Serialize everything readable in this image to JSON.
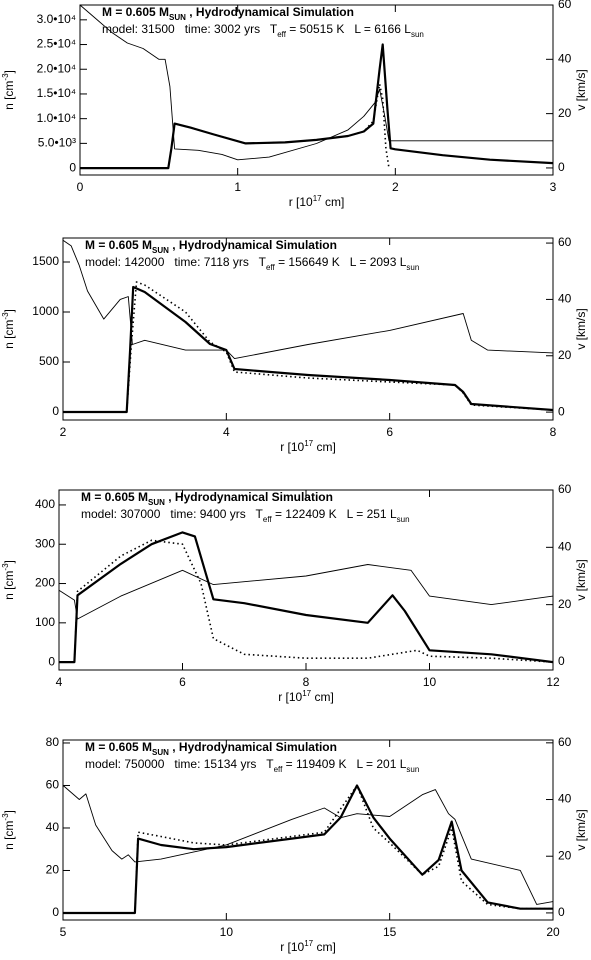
{
  "chart_data": [
    {
      "type": "line",
      "title": [
        {
          "text": "M = 0.605 M"
        },
        {
          "text": "SUN",
          "sub": true
        },
        {
          "text": " , Hydrodynamical Simulation"
        }
      ],
      "info": [
        {
          "text": "model: 31500   time: 3002 yrs   T"
        },
        {
          "text": "eff",
          "sub": true
        },
        {
          "text": " = 50515 K   L = 6166 L"
        },
        {
          "text": "sun",
          "sub": true
        }
      ],
      "xlabel": [
        {
          "text": "r [10"
        },
        {
          "text": "17",
          "sup": true
        },
        {
          "text": " cm]"
        }
      ],
      "ylabel": [
        {
          "text": "n [cm"
        },
        {
          "text": "-3",
          "sup": true
        },
        {
          "text": "]"
        }
      ],
      "y2label": [
        {
          "text": "v [km/s]"
        }
      ],
      "xlim": [
        0,
        3
      ],
      "xticks": [
        0,
        1,
        2,
        3
      ],
      "ylim": [
        -1400,
        33000
      ],
      "yticks": [
        0,
        {
          "value": 5000,
          "label": "5.0•10³"
        },
        {
          "value": 10000,
          "label": "1.0•10⁴"
        },
        {
          "value": 15000,
          "label": "1.5•10⁴"
        },
        {
          "value": 20000,
          "label": "2.0•10⁴"
        },
        {
          "value": 25000,
          "label": "2.5•10⁴"
        },
        {
          "value": 30000,
          "label": "3.0•10⁴"
        }
      ],
      "y2lim": [
        -2.6,
        60
      ],
      "y2ticks": [
        0,
        20,
        40,
        60
      ],
      "series": [
        {
          "color": "#000000",
          "width": 2.2,
          "dash": false,
          "x": [
            0,
            0.3,
            0.56,
            0.58,
            0.6,
            0.7,
            0.85,
            1.05,
            1.3,
            1.5,
            1.7,
            1.8,
            1.86,
            1.9,
            1.92,
            1.95,
            1.97,
            2.0,
            2.3,
            2.6,
            3.0
          ],
          "values": [
            0,
            0,
            0,
            4000,
            9000,
            8200,
            6800,
            5000,
            5200,
            5700,
            6500,
            7400,
            9000,
            20000,
            25000,
            12000,
            4000,
            3800,
            2600,
            1700,
            1000
          ]
        },
        {
          "color": "#000000",
          "width": 1.6,
          "dash": true,
          "x": [
            0,
            0.3,
            0.56,
            0.58,
            0.6,
            0.7,
            0.85,
            1.05,
            1.3,
            1.5,
            1.7,
            1.8,
            1.86,
            1.9,
            1.92,
            1.94,
            1.96
          ],
          "values": [
            0,
            0,
            0,
            4000,
            9000,
            8200,
            6800,
            5000,
            5200,
            5700,
            6500,
            7400,
            9500,
            17000,
            14000,
            4000,
            0
          ]
        },
        {
          "color": "#000000",
          "width": 0.9,
          "dash": false,
          "axis": "y2",
          "x": [
            0,
            0.1,
            0.2,
            0.3,
            0.4,
            0.5,
            0.54,
            0.57,
            0.6,
            0.75,
            0.9,
            1.0,
            1.2,
            1.5,
            1.7,
            1.8,
            1.87,
            1.9,
            1.93,
            1.96,
            2.0,
            2.5,
            3.0
          ],
          "values": [
            60,
            55,
            50,
            46,
            44,
            40,
            40,
            30,
            7,
            6.5,
            5,
            3,
            4,
            9,
            14,
            19,
            24,
            29,
            20,
            10,
            10,
            10,
            10
          ]
        }
      ]
    },
    {
      "type": "line",
      "title": [
        {
          "text": "M = 0.605 M"
        },
        {
          "text": "SUN",
          "sub": true
        },
        {
          "text": " , Hydrodynamical Simulation"
        }
      ],
      "info": [
        {
          "text": "model: 142000   time: 7118 yrs   T"
        },
        {
          "text": "eff",
          "sub": true
        },
        {
          "text": " = 156649 K   L = 2093 L"
        },
        {
          "text": "sun",
          "sub": true
        }
      ],
      "xlabel": [
        {
          "text": "r [10"
        },
        {
          "text": "17",
          "sup": true
        },
        {
          "text": " cm]"
        }
      ],
      "ylabel": [
        {
          "text": "n [cm"
        },
        {
          "text": "-3",
          "sup": true
        },
        {
          "text": "]"
        }
      ],
      "y2label": [
        {
          "text": "v [km/s]"
        }
      ],
      "xlim": [
        2,
        8
      ],
      "xticks": [
        2,
        4,
        6,
        8
      ],
      "ylim": [
        -80,
        1740
      ],
      "yticks": [
        0,
        500,
        1000,
        1500
      ],
      "y2lim": [
        -2.8,
        61.8
      ],
      "y2ticks": [
        0,
        20,
        40,
        60
      ],
      "series": [
        {
          "color": "#000000",
          "width": 2.2,
          "dash": false,
          "x": [
            2,
            2.78,
            2.82,
            2.86,
            3.0,
            3.5,
            3.8,
            4.0,
            4.1,
            5.0,
            6.0,
            6.8,
            6.9,
            7.0,
            8.0
          ],
          "values": [
            0,
            0,
            600,
            1250,
            1200,
            900,
            680,
            620,
            430,
            370,
            320,
            270,
            200,
            80,
            20
          ]
        },
        {
          "color": "#000000",
          "width": 1.6,
          "dash": true,
          "x": [
            2,
            2.78,
            2.84,
            2.9,
            3.0,
            3.5,
            3.8,
            4.0,
            4.1,
            5.0,
            6.0,
            6.8,
            6.9,
            7.0,
            8.0
          ],
          "values": [
            0,
            0,
            700,
            1300,
            1270,
            1000,
            700,
            600,
            400,
            340,
            300,
            270,
            190,
            70,
            20
          ]
        },
        {
          "color": "#000000",
          "width": 0.9,
          "dash": false,
          "axis": "y2",
          "x": [
            2,
            2.1,
            2.2,
            2.3,
            2.5,
            2.7,
            2.8,
            2.85,
            3.0,
            3.5,
            4.0,
            4.1,
            5.0,
            6.0,
            6.9,
            7.0,
            7.2,
            8.0
          ],
          "values": [
            61,
            59,
            52,
            43,
            33,
            40,
            41,
            24,
            25.5,
            22,
            22,
            19,
            24,
            29,
            35,
            25.5,
            22,
            21
          ]
        }
      ]
    },
    {
      "type": "line",
      "title": [
        {
          "text": "M = 0.605 M"
        },
        {
          "text": "SUN",
          "sub": true
        },
        {
          "text": " , Hydrodynamical Simulation"
        }
      ],
      "info": [
        {
          "text": "model: 307000   time: 9400 yrs   T"
        },
        {
          "text": "eff",
          "sub": true
        },
        {
          "text": " = 122409 K   L = 251 L"
        },
        {
          "text": "sun",
          "sub": true
        }
      ],
      "xlabel": [
        {
          "text": "r [10"
        },
        {
          "text": "17",
          "sup": true
        },
        {
          "text": " cm]"
        }
      ],
      "ylabel": [
        {
          "text": "n [cm"
        },
        {
          "text": "-3",
          "sup": true
        },
        {
          "text": "]"
        }
      ],
      "y2label": [
        {
          "text": "v [km/s]"
        }
      ],
      "xlim": [
        4,
        12
      ],
      "xticks": [
        4,
        6,
        8,
        10,
        12
      ],
      "ylim": [
        -20,
        438
      ],
      "yticks": [
        0,
        100,
        200,
        300,
        400
      ],
      "y2lim": [
        -2.8,
        60
      ],
      "y2ticks": [
        0,
        20,
        40,
        60
      ],
      "series": [
        {
          "color": "#000000",
          "width": 2.2,
          "dash": false,
          "x": [
            4,
            4.25,
            4.3,
            5.0,
            5.5,
            6.0,
            6.2,
            6.5,
            7.0,
            8.0,
            9.0,
            9.4,
            9.6,
            10.0,
            11.0,
            12.0
          ],
          "values": [
            0,
            0,
            170,
            250,
            300,
            330,
            320,
            160,
            150,
            120,
            100,
            170,
            130,
            30,
            20,
            0
          ]
        },
        {
          "color": "#000000",
          "width": 1.6,
          "dash": true,
          "x": [
            4,
            4.25,
            4.3,
            5.0,
            5.5,
            6.0,
            6.3,
            6.5,
            7.0,
            8.0,
            9.0,
            9.8,
            10.0,
            11.0,
            12.0
          ],
          "values": [
            0,
            0,
            180,
            270,
            310,
            300,
            200,
            60,
            20,
            10,
            10,
            30,
            15,
            10,
            0
          ]
        },
        {
          "color": "#000000",
          "width": 0.9,
          "dash": false,
          "axis": "y2",
          "x": [
            4,
            4.25,
            4.3,
            5.0,
            6.0,
            6.5,
            7.0,
            8.0,
            9.0,
            9.7,
            10.0,
            11.0,
            12.0
          ],
          "values": [
            25,
            21.6,
            15,
            23,
            32,
            27,
            28,
            30,
            34,
            32,
            23,
            20,
            23
          ]
        }
      ]
    },
    {
      "type": "line",
      "title": [
        {
          "text": "M = 0.605 M"
        },
        {
          "text": "SUN",
          "sub": true
        },
        {
          "text": " , Hydrodynamical Simulation"
        }
      ],
      "info": [
        {
          "text": "model: 750000   time: 15134 yrs   T"
        },
        {
          "text": "eff",
          "sub": true
        },
        {
          "text": " = 119409 K   L = 201 L"
        },
        {
          "text": "sun",
          "sub": true
        }
      ],
      "xlabel": [
        {
          "text": "r [10"
        },
        {
          "text": "17",
          "sup": true
        },
        {
          "text": " cm]"
        }
      ],
      "ylabel": [
        {
          "text": "n [cm"
        },
        {
          "text": "-3",
          "sup": true
        },
        {
          "text": "]"
        }
      ],
      "y2label": [
        {
          "text": "v [km/s]"
        }
      ],
      "xlim": [
        5,
        20
      ],
      "xticks": [
        5,
        10,
        15,
        20
      ],
      "ylim": [
        -3.3,
        81.4
      ],
      "yticks": [
        0,
        20,
        40,
        60,
        80
      ],
      "y2lim": [
        -2.5,
        61
      ],
      "y2ticks": [
        0,
        20,
        40,
        60
      ],
      "series": [
        {
          "color": "#000000",
          "width": 2.2,
          "dash": false,
          "x": [
            5,
            7.2,
            7.3,
            8,
            9,
            10,
            12,
            13,
            13.5,
            14,
            14.5,
            15,
            16,
            16.5,
            16.9,
            17.2,
            18,
            19,
            20
          ],
          "values": [
            0,
            0,
            35,
            32,
            30,
            31,
            35,
            37,
            45,
            60,
            45,
            35,
            18,
            25,
            43,
            20,
            5,
            2,
            2
          ]
        },
        {
          "color": "#000000",
          "width": 1.6,
          "dash": true,
          "x": [
            5,
            7.2,
            7.3,
            8,
            9,
            10,
            12,
            13,
            14,
            14.5,
            15,
            16,
            16.5,
            16.9,
            17.2,
            18,
            19,
            20
          ],
          "values": [
            0,
            0,
            38,
            36,
            33,
            32,
            36,
            38,
            60,
            40,
            33,
            18,
            22,
            40,
            15,
            4,
            2,
            2
          ]
        },
        {
          "color": "#000000",
          "width": 0.9,
          "dash": false,
          "axis": "y2",
          "x": [
            5,
            5.5,
            5.7,
            6,
            6.5,
            6.8,
            7,
            7.2,
            8,
            10,
            12,
            13,
            13.5,
            14,
            15,
            16,
            16.4,
            16.8,
            17,
            17.5,
            19,
            19.5,
            20
          ],
          "values": [
            45,
            40,
            42,
            31,
            22,
            19,
            20.5,
            18,
            19,
            24,
            33,
            37,
            33.6,
            35,
            34,
            41.7,
            43.5,
            35,
            33,
            19,
            15,
            3,
            4
          ]
        }
      ]
    }
  ]
}
